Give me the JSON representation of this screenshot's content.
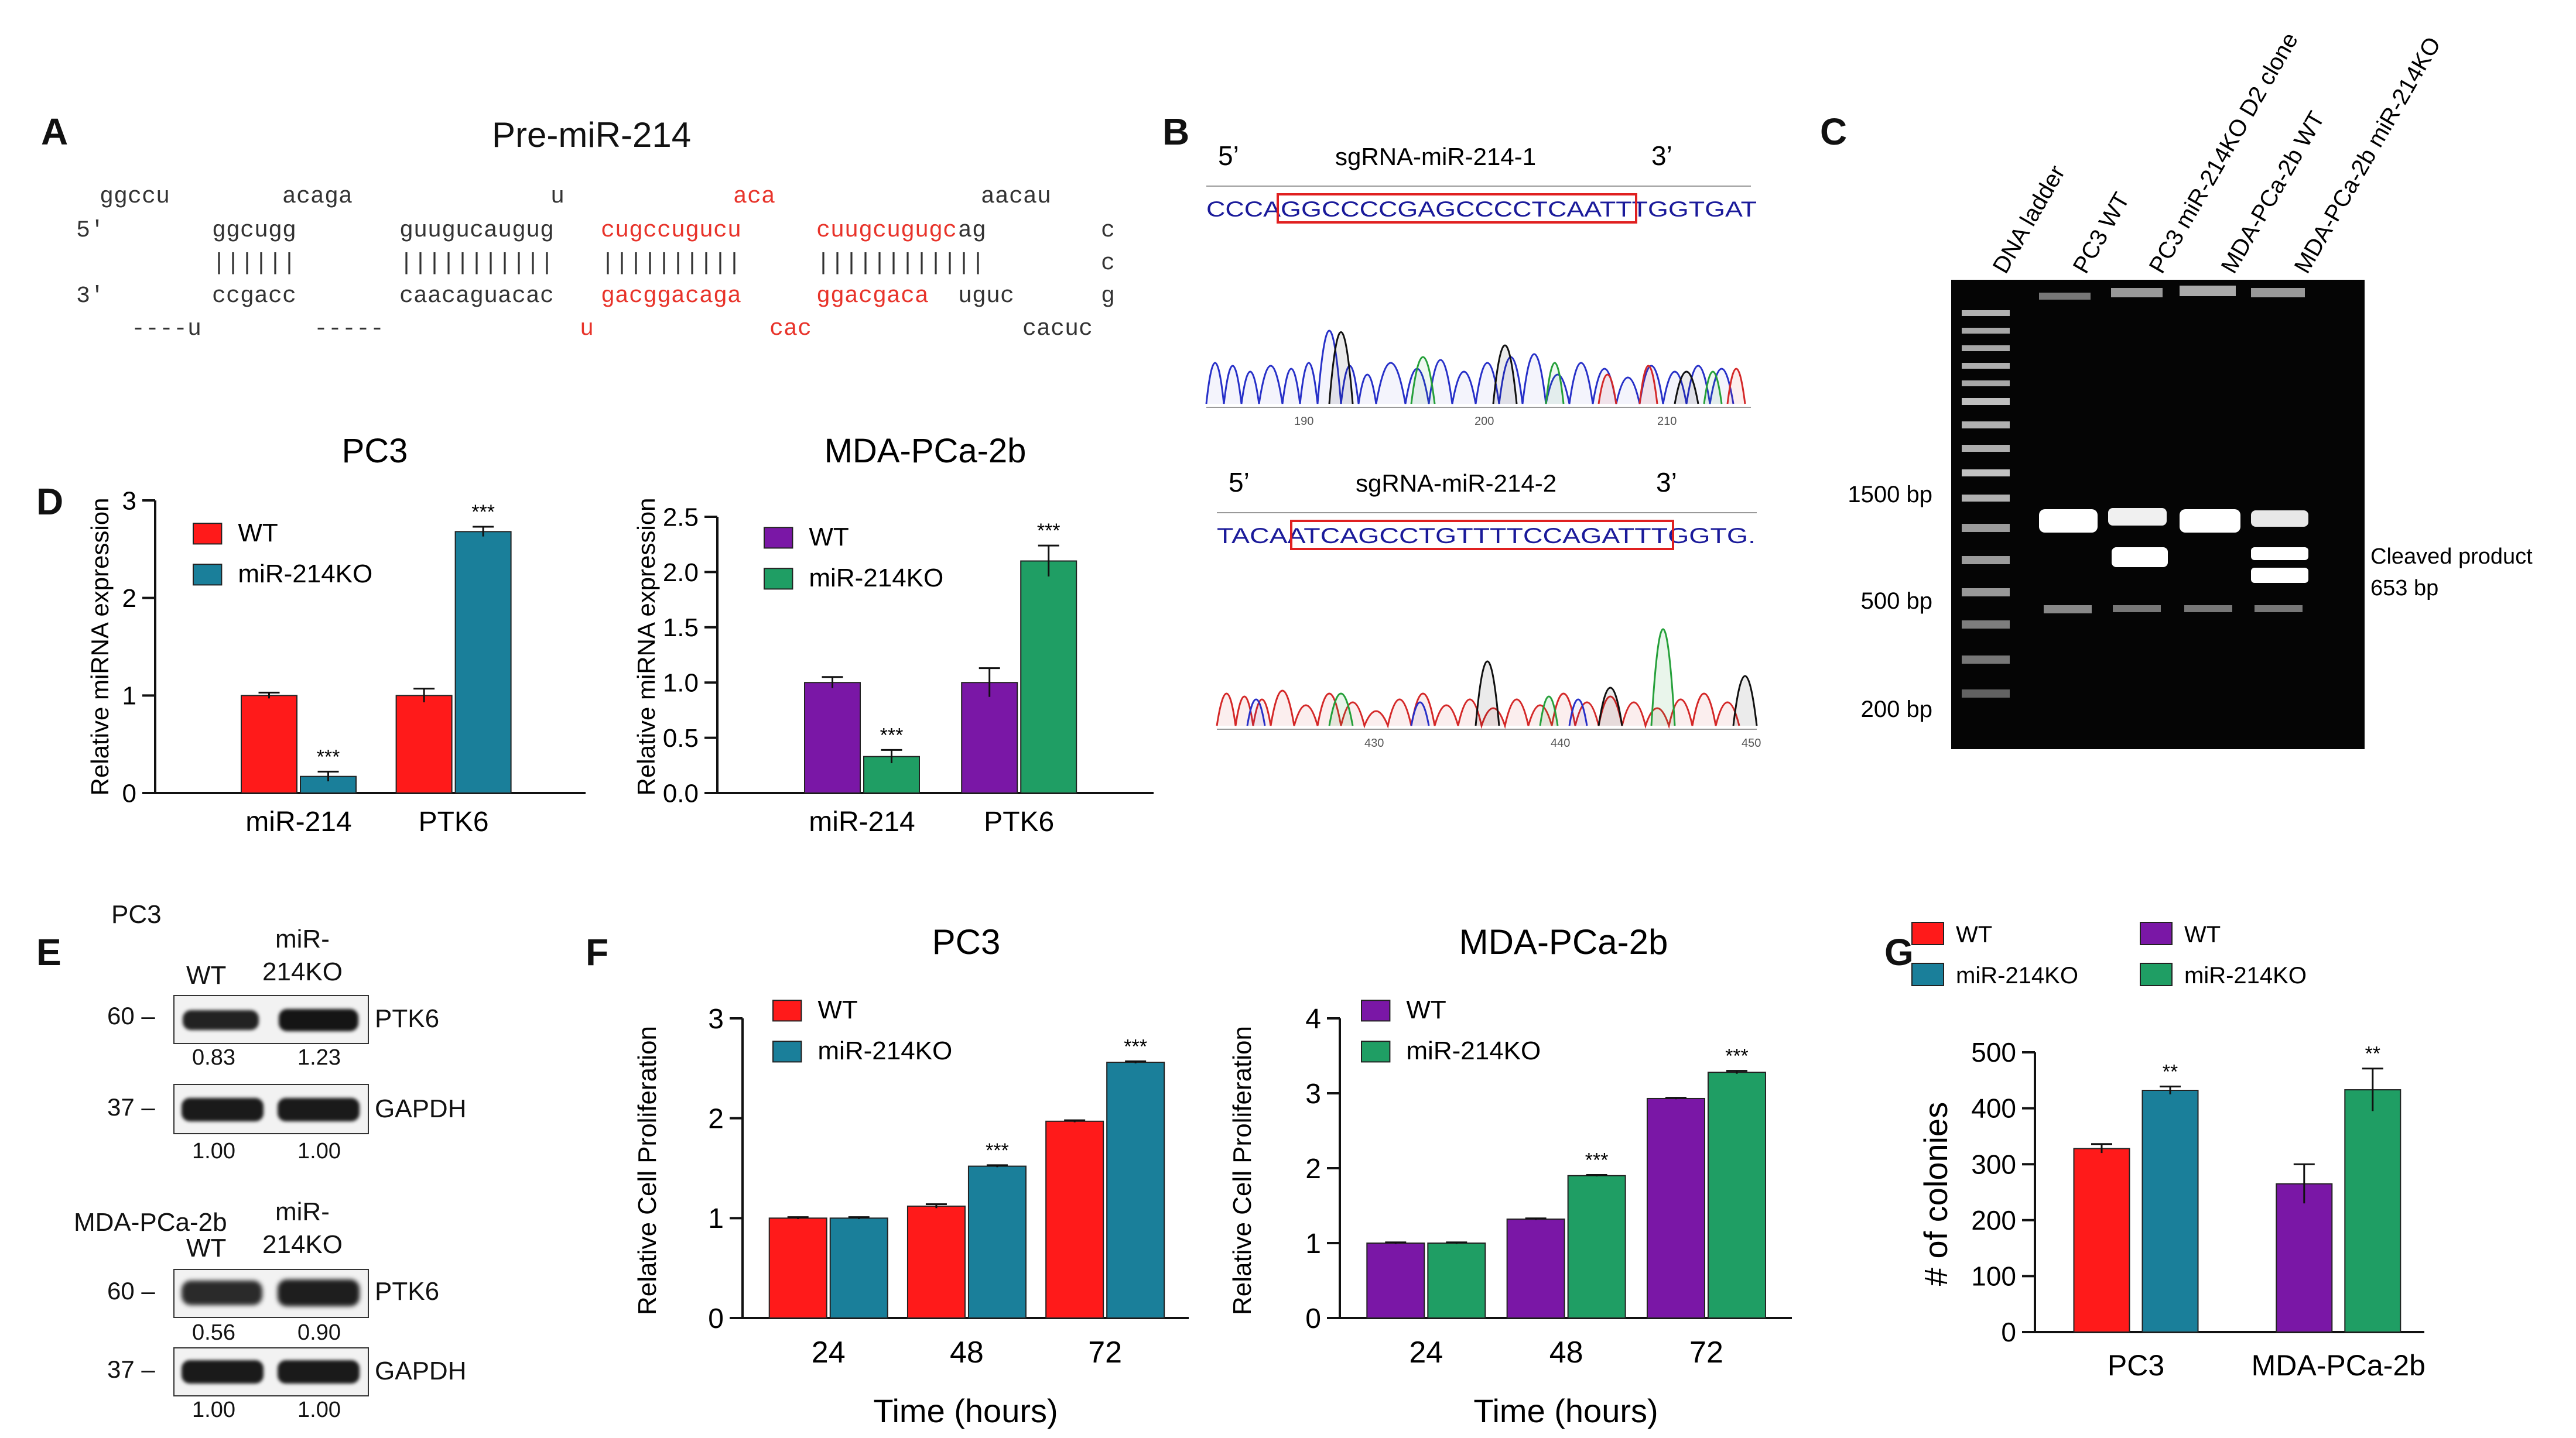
{
  "panels": {
    "A": {
      "letter": "A",
      "title": "Pre-miR-214",
      "row1": {
        "a": "ggccu",
        "b": "acaga",
        "c": "u",
        "d_red": "aca",
        "e": "aacau"
      },
      "row2": {
        "prime": "5'",
        "a": "ggcugg",
        "b": "guugucaugug",
        "c_red": "cugccugucu",
        "d_red": "cuugcugugc",
        "e": "ag",
        "f": "c"
      },
      "row3": {
        "a": "||||||",
        "b": "|||||||||||",
        "c": "||||||||||",
        "d": "||||||||||||",
        "f": "c"
      },
      "row4": {
        "prime": "3'",
        "a": "ccgacc",
        "b": "caacaguacac",
        "c_red": "gacggacaga",
        "d_red": "ggacgaca",
        "e": "uguc",
        "f": "g"
      },
      "row5": {
        "a": "----u",
        "b": "-----",
        "c_red": "u",
        "d_red": "cac",
        "e": "cacuc"
      }
    },
    "B": {
      "letter": "B",
      "trace1": {
        "label5": "5’",
        "name": "sgRNA-miR-214-1",
        "label3": "3’",
        "bases": "CCCAGGCCCCGAGCCCCTCAATTTGGTGAT",
        "ticks": [
          "190",
          "200",
          "210"
        ]
      },
      "trace2": {
        "label5": "5’",
        "name": "sgRNA-miR-214-2",
        "label3": "3’",
        "bases": "TACAATCAGCCTGTTTTCCAGATTTGGTG.",
        "ticks": [
          "430",
          "440",
          "450"
        ]
      }
    },
    "C": {
      "letter": "C",
      "lanes": [
        "DNA ladder",
        "PC3 WT",
        "PC3 miR-214KO D2 clone",
        "MDA-PCa-2b WT",
        "MDA-PCa-2b miR-214KO"
      ],
      "markers": [
        "1500 bp",
        "500 bp",
        "200 bp"
      ],
      "annotation_line1": "Cleaved product",
      "annotation_line2": "653 bp"
    },
    "D": {
      "letter": "D"
    },
    "E": {
      "letter": "E",
      "blot1": {
        "cell": "PC3",
        "wt": "WT",
        "ko_line1": "miR-",
        "ko_line2": "214KO",
        "mw1": "60 –",
        "mw2": "37 –",
        "protein1": "PTK6",
        "protein2": "GAPDH",
        "q1_wt": "0.83",
        "q1_ko": "1.23",
        "q2_wt": "1.00",
        "q2_ko": "1.00"
      },
      "blot2": {
        "cell": "MDA-PCa-2b",
        "wt": "WT",
        "ko_line1": "miR-",
        "ko_line2": "214KO",
        "mw1": "60 –",
        "mw2": "37 –",
        "protein1": "PTK6",
        "protein2": "GAPDH",
        "q1_wt": "0.56",
        "q1_ko": "0.90",
        "q2_wt": "1.00",
        "q2_ko": "1.00"
      }
    },
    "F": {
      "letter": "F"
    },
    "G": {
      "letter": "G"
    }
  },
  "colors": {
    "red": "#ff1a1a",
    "teal": "#1a7f9a",
    "purple": "#7a17a6",
    "green": "#1f9e64"
  },
  "chart_data": [
    {
      "id": "D-PC3",
      "type": "bar",
      "title": "PC3",
      "xlabel": "",
      "ylabel": "Relative miRNA expression",
      "categories": [
        "miR-214",
        "PTK6"
      ],
      "ylim": [
        0,
        3
      ],
      "yticks": [
        0,
        1,
        2,
        3
      ],
      "ytick_labels": [
        "0",
        "1",
        "2",
        "3"
      ],
      "series": [
        {
          "name": "WT",
          "color": "#ff1a1a",
          "values": [
            1.0,
            1.0
          ],
          "errors": [
            0.03,
            0.07
          ],
          "sig": [
            "",
            ""
          ]
        },
        {
          "name": "miR-214KO",
          "color": "#1a7f9a",
          "values": [
            0.17,
            2.68
          ],
          "errors": [
            0.05,
            0.05
          ],
          "sig": [
            "***",
            "***"
          ]
        }
      ]
    },
    {
      "id": "D-MDA",
      "type": "bar",
      "title": "MDA-PCa-2b",
      "xlabel": "",
      "ylabel": "Relative miRNA expression",
      "categories": [
        "miR-214",
        "PTK6"
      ],
      "ylim": [
        0,
        2.5
      ],
      "yticks": [
        0,
        0.5,
        1,
        1.5,
        2,
        2.5
      ],
      "ytick_labels": [
        "0.0",
        "0.5",
        "1.0",
        "1.5",
        "2.0",
        "2.5"
      ],
      "series": [
        {
          "name": "WT",
          "color": "#7a17a6",
          "values": [
            1.0,
            1.0
          ],
          "errors": [
            0.05,
            0.13
          ],
          "sig": [
            "",
            ""
          ]
        },
        {
          "name": "miR-214KO",
          "color": "#1f9e64",
          "values": [
            0.33,
            2.1
          ],
          "errors": [
            0.06,
            0.14
          ],
          "sig": [
            "***",
            "***"
          ]
        }
      ]
    },
    {
      "id": "F-PC3",
      "type": "bar",
      "title": "PC3",
      "xlabel": "Time (hours)",
      "ylabel": "Relative Cell Proliferation",
      "categories": [
        "24",
        "48",
        "72"
      ],
      "ylim": [
        0,
        3
      ],
      "yticks": [
        0,
        1,
        2,
        3
      ],
      "ytick_labels": [
        "0",
        "1",
        "2",
        "3"
      ],
      "series": [
        {
          "name": "WT",
          "color": "#ff1a1a",
          "values": [
            1.0,
            1.12,
            1.97
          ],
          "errors": [
            0.01,
            0.02,
            0.01
          ],
          "sig": [
            "",
            "",
            ""
          ]
        },
        {
          "name": "miR-214KO",
          "color": "#1a7f9a",
          "values": [
            1.0,
            1.52,
            2.56
          ],
          "errors": [
            0.01,
            0.01,
            0.01
          ],
          "sig": [
            "",
            "***",
            "***"
          ]
        }
      ]
    },
    {
      "id": "F-MDA",
      "type": "bar",
      "title": "MDA-PCa-2b",
      "xlabel": "Time (hours)",
      "ylabel": "Relative Cell Proliferation",
      "categories": [
        "24",
        "48",
        "72"
      ],
      "ylim": [
        0,
        4
      ],
      "yticks": [
        0,
        1,
        2,
        3,
        4
      ],
      "ytick_labels": [
        "0",
        "1",
        "2",
        "3",
        "4"
      ],
      "series": [
        {
          "name": "WT",
          "color": "#7a17a6",
          "values": [
            1.0,
            1.32,
            2.93
          ],
          "errors": [
            0.01,
            0.01,
            0.01
          ],
          "sig": [
            "",
            "",
            ""
          ]
        },
        {
          "name": "miR-214KO",
          "color": "#1f9e64",
          "values": [
            1.0,
            1.9,
            3.28
          ],
          "errors": [
            0.01,
            0.01,
            0.02
          ],
          "sig": [
            "",
            "***",
            "***"
          ]
        }
      ]
    },
    {
      "id": "G",
      "type": "bar",
      "title": "",
      "xlabel": "",
      "ylabel": "# of colonies",
      "categories": [
        "PC3",
        "MDA-PCa-2b"
      ],
      "ylim": [
        0,
        500
      ],
      "yticks": [
        0,
        100,
        200,
        300,
        400,
        500
      ],
      "ytick_labels": [
        "0",
        "100",
        "200",
        "300",
        "400",
        "500"
      ],
      "series": [
        {
          "name": "WT",
          "color": "#ff1a1a",
          "values": [
            328,
            null
          ],
          "errors": [
            8,
            null
          ],
          "sig": [
            "",
            ""
          ]
        },
        {
          "name": "miR-214KO",
          "color": "#1a7f9a",
          "values": [
            432,
            null
          ],
          "errors": [
            7,
            null
          ],
          "sig": [
            "**",
            ""
          ]
        },
        {
          "name": "WT",
          "color": "#7a17a6",
          "values": [
            null,
            265
          ],
          "errors": [
            null,
            35
          ],
          "sig": [
            "",
            ""
          ]
        },
        {
          "name": "miR-214KO",
          "color": "#1f9e64",
          "values": [
            null,
            433
          ],
          "errors": [
            null,
            38
          ],
          "sig": [
            "",
            "**"
          ]
        }
      ]
    }
  ]
}
